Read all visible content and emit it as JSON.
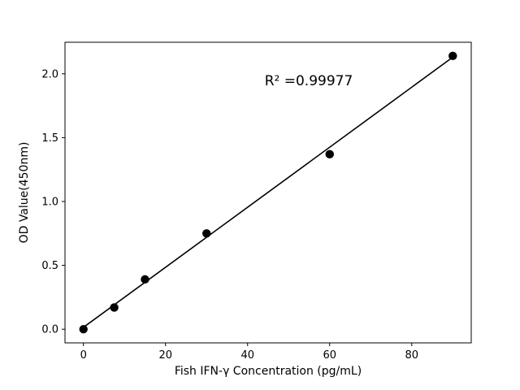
{
  "figure": {
    "background": "#ffffff"
  },
  "chart_data": {
    "type": "scatter",
    "title": "",
    "xlabel": "Fish IFN-γ  Concentration (pg/mL)",
    "ylabel": "OD Value(450nm)",
    "xlim": [
      -4.5,
      94.5
    ],
    "ylim": [
      -0.107,
      2.247
    ],
    "x_ticks": [
      0,
      20,
      40,
      60,
      80
    ],
    "y_ticks": [
      0.0,
      0.5,
      1.0,
      1.5,
      2.0
    ],
    "grid": false,
    "legend": "none",
    "marker_color": "#000000",
    "line_color": "#000000",
    "points": [
      {
        "x": 0,
        "y": 0.0
      },
      {
        "x": 7.5,
        "y": 0.17
      },
      {
        "x": 15,
        "y": 0.39
      },
      {
        "x": 30,
        "y": 0.75
      },
      {
        "x": 60,
        "y": 1.37
      },
      {
        "x": 90,
        "y": 2.14
      }
    ],
    "trendline": {
      "x1": 0,
      "y1": 0.015,
      "x2": 90,
      "y2": 2.13
    },
    "annotation": {
      "text": "R² =0.99977",
      "x": 55,
      "y": 1.95
    }
  }
}
